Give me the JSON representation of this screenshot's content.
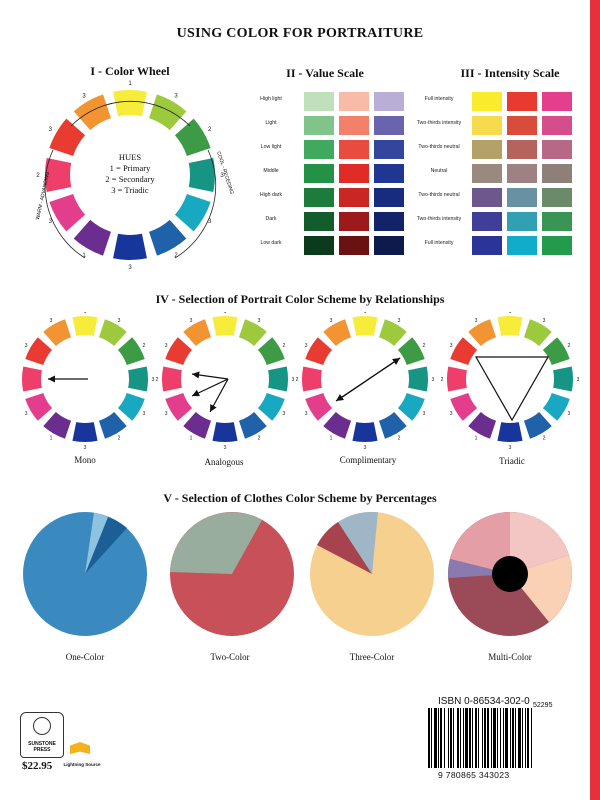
{
  "title": "USING COLOR FOR PORTRAITURE",
  "sections": {
    "s1": "I - Color Wheel",
    "s2": "II - Value Scale",
    "s3": "III - Intensity Scale",
    "s4": "IV - Selection of Portrait Color Scheme by Relationships",
    "s5": "V - Selection of Clothes Color Scheme by Percentages"
  },
  "wheel": {
    "hues_title": "HUES",
    "legend": [
      "1 = Primary",
      "2 = Secondary",
      "3 = Triadic"
    ],
    "warm": "WARM - ADVANCING",
    "cool": "COOL - RECEDING",
    "segment_colors": [
      "#f7ec3a",
      "#9dc93c",
      "#3e9b45",
      "#169585",
      "#18a8c2",
      "#1f62a9",
      "#17359a",
      "#6b2d8f",
      "#e23e8c",
      "#ed3f6a",
      "#e83c33",
      "#f39433"
    ],
    "segment_numbers": [
      "1",
      "3",
      "2",
      "3",
      "3",
      "2",
      "3",
      "1",
      "3",
      "2",
      "3",
      "3"
    ]
  },
  "value_scale": {
    "labels": [
      "High light",
      "Light",
      "Low light",
      "Middle",
      "High dark",
      "Dark",
      "Low dark"
    ],
    "columns": [
      [
        "#bfe0bb",
        "#80c48b",
        "#41a95d",
        "#239146",
        "#1d7b3c",
        "#135c2c",
        "#0b3b1c"
      ],
      [
        "#f8bba8",
        "#f2806a",
        "#ea4b3f",
        "#e02b27",
        "#c92624",
        "#9c1a1b",
        "#6a1112"
      ],
      [
        "#b8aed6",
        "#6a64ad",
        "#34459d",
        "#1f3793",
        "#182c7f",
        "#13236a",
        "#0f1a4c"
      ]
    ]
  },
  "intensity_scale": {
    "labels": [
      "Full intensity",
      "Two-thirds intensity",
      "Two-thirds neutral",
      "Neutral",
      "Two-thirds neutral",
      "Two-thirds intensity",
      "Full intensity"
    ],
    "columns": [
      [
        "#f8ec2c",
        "#f6db4c",
        "#b3a168",
        "#998a7f",
        "#6e588b",
        "#3f3f9a",
        "#2a3499"
      ],
      [
        "#e83a31",
        "#d94c3b",
        "#b7635d",
        "#9d8183",
        "#6892a3",
        "#32a0b3",
        "#10acc9"
      ],
      [
        "#e33f8d",
        "#d54d8a",
        "#b66886",
        "#8e8079",
        "#6a8a6a",
        "#3a9554",
        "#249a4c"
      ]
    ]
  },
  "relationships": {
    "captions": [
      "Mono",
      "Analogous",
      "Complimentary",
      "Triadic"
    ]
  },
  "clothes": {
    "captions": [
      "One-Color",
      "Two-Color",
      "Three-Color",
      "Multi-Color"
    ]
  },
  "isbn_label": "ISBN 0-86534-302-0",
  "isbn_number": "9 780865 343023",
  "barcode_addon": "52295",
  "price": "$22.95",
  "publisher": "SUNSTONE PRESS",
  "printer": "Lightning Source"
}
